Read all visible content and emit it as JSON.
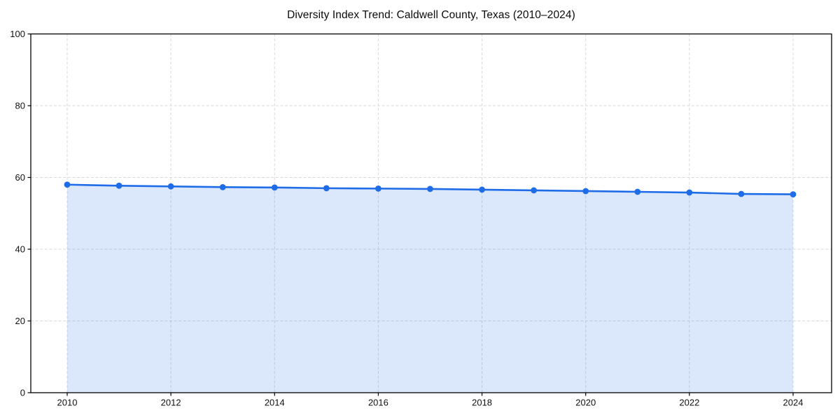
{
  "chart_data": {
    "type": "area",
    "title": "Diversity Index Trend: Caldwell County, Texas (2010–2024)",
    "x": [
      2010,
      2011,
      2012,
      2013,
      2014,
      2015,
      2016,
      2017,
      2018,
      2019,
      2020,
      2021,
      2022,
      2023,
      2024
    ],
    "series": [
      {
        "name": "Diversity Index",
        "values": [
          58.0,
          57.7,
          57.5,
          57.3,
          57.2,
          57.0,
          56.9,
          56.8,
          56.6,
          56.4,
          56.2,
          56.0,
          55.8,
          55.4,
          55.3
        ]
      }
    ],
    "ylim": [
      0,
      100
    ],
    "yticks": [
      0,
      20,
      40,
      60,
      80,
      100
    ],
    "xticks": [
      2010,
      2012,
      2014,
      2016,
      2018,
      2020,
      2022,
      2024
    ],
    "grid": true,
    "grid_style": "dashed",
    "legend": "none",
    "marker": "circle",
    "colors": {
      "line": "#1f6ce8",
      "fill": "#1f6ce8",
      "grid": "#d9d9d9",
      "axis": "#000000",
      "tick_label": "#111111",
      "title": "#0a0a0a",
      "background": "#ffffff"
    }
  }
}
